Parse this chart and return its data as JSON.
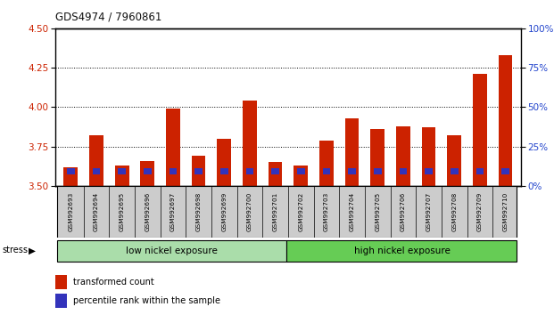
{
  "title": "GDS4974 / 7960861",
  "samples": [
    "GSM992693",
    "GSM992694",
    "GSM992695",
    "GSM992696",
    "GSM992697",
    "GSM992698",
    "GSM992699",
    "GSM992700",
    "GSM992701",
    "GSM992702",
    "GSM992703",
    "GSM992704",
    "GSM992705",
    "GSM992706",
    "GSM992707",
    "GSM992708",
    "GSM992709",
    "GSM992710"
  ],
  "red_values": [
    3.62,
    3.82,
    3.63,
    3.66,
    3.99,
    3.69,
    3.8,
    4.04,
    3.65,
    3.63,
    3.79,
    3.93,
    3.86,
    3.88,
    3.87,
    3.82,
    4.21,
    4.33
  ],
  "blue_pct": [
    10,
    12,
    10,
    10,
    10,
    10,
    12,
    12,
    10,
    8,
    12,
    12,
    10,
    10,
    10,
    10,
    15,
    15
  ],
  "ylim_left": [
    3.5,
    4.5
  ],
  "ylim_right": [
    0,
    100
  ],
  "yticks_left": [
    3.5,
    3.75,
    4.0,
    4.25,
    4.5
  ],
  "yticks_right": [
    0,
    25,
    50,
    75,
    100
  ],
  "ytick_labels_right": [
    "0%",
    "25%",
    "50%",
    "75%",
    "100%"
  ],
  "group1_label": "low nickel exposure",
  "group2_label": "high nickel exposure",
  "group1_count": 9,
  "stress_label": "stress",
  "legend_red": "transformed count",
  "legend_blue": "percentile rank within the sample",
  "red_color": "#cc2200",
  "blue_color": "#3333bb",
  "group1_color": "#aaddaa",
  "group2_color": "#66cc55",
  "tick_label_bg": "#cccccc",
  "left_tick_color": "#cc2200",
  "right_tick_color": "#2244cc"
}
